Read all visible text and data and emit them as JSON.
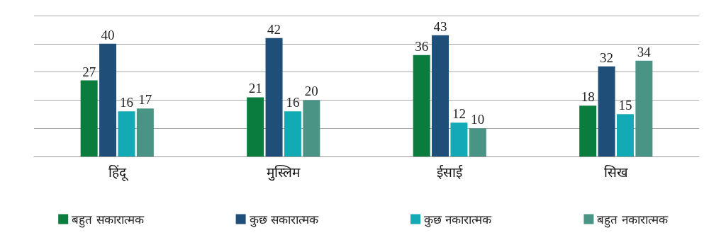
{
  "chart_data": {
    "type": "bar",
    "categories": [
      "हिंदू",
      "मुस्लिम",
      "ईसाई",
      "सिख"
    ],
    "series": [
      {
        "name": "बहुत सकारात्मक",
        "color": "#0a7c3e",
        "values": [
          27,
          21,
          36,
          18
        ]
      },
      {
        "name": "कुछ सकारात्मक",
        "color": "#1f4e79",
        "values": [
          40,
          42,
          43,
          32
        ]
      },
      {
        "name": "कुछ नकारात्मक",
        "color": "#12aab5",
        "values": [
          16,
          16,
          12,
          15
        ]
      },
      {
        "name": "बहुत नकारात्मक",
        "color": "#4a9485",
        "values": [
          17,
          20,
          10,
          34
        ]
      }
    ],
    "ylim": [
      0,
      50
    ],
    "yticks": [
      {
        "value": 0,
        "label": null
      },
      {
        "value": 10,
        "label": null
      },
      {
        "value": 20,
        "label": null
      },
      {
        "value": 30,
        "label": null
      },
      {
        "value": 40,
        "label": null
      },
      {
        "value": 50,
        "label": null
      }
    ],
    "tick_labels": "x",
    "grid": "y",
    "data_labels": true,
    "legend": "bottom"
  }
}
